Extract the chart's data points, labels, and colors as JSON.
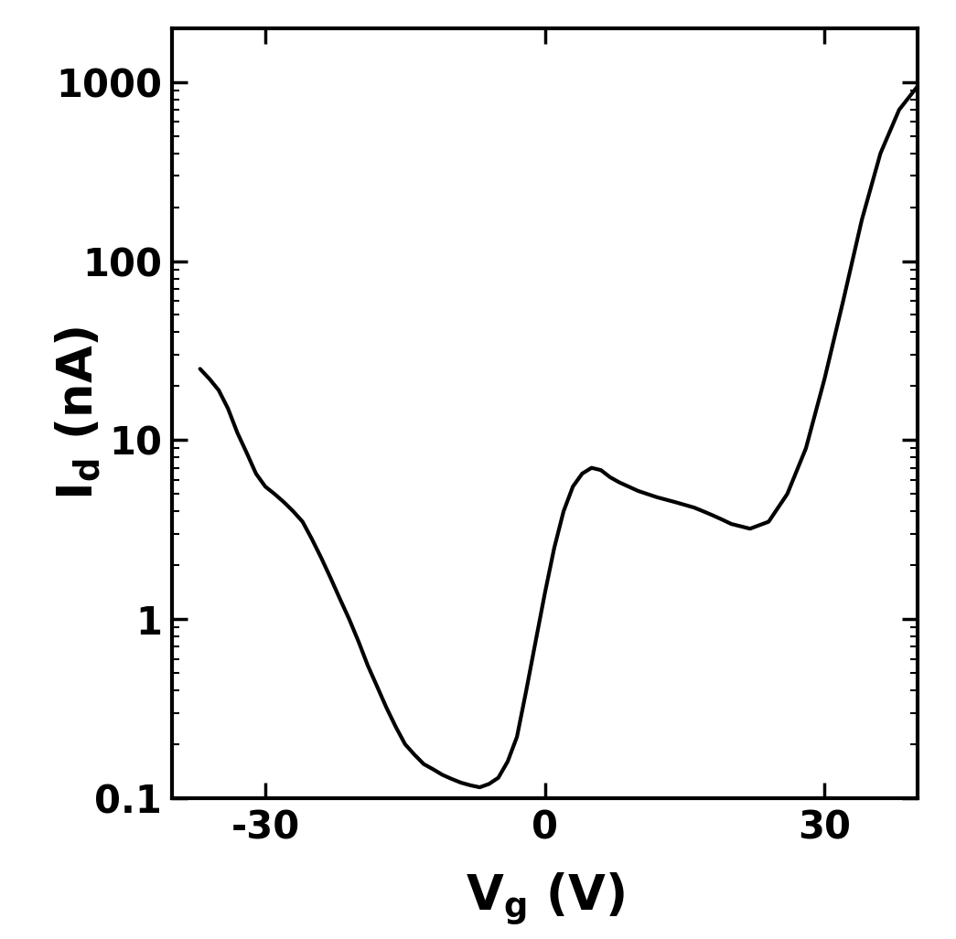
{
  "title": "",
  "xlabel_text": "$\\mathbf{V_g}$ $\\mathbf{(V)}$",
  "ylabel_text": "$\\mathbf{I_d}$ $\\mathbf{(nA)}$",
  "xlim": [
    -40,
    40
  ],
  "ylim": [
    0.1,
    2000
  ],
  "xticks": [
    -30,
    0,
    30
  ],
  "ytick_vals": [
    0.1,
    1,
    10,
    100,
    1000
  ],
  "ytick_labels": [
    "0.1",
    "1",
    "10",
    "100",
    "1000"
  ],
  "line_color": "#000000",
  "line_width": 3.0,
  "background_color": "#ffffff",
  "x": [
    -37,
    -36,
    -35,
    -34,
    -33,
    -32,
    -31,
    -30,
    -29,
    -28,
    -27,
    -26,
    -25,
    -24,
    -23,
    -22,
    -21,
    -20,
    -19,
    -18,
    -17,
    -16,
    -15,
    -14,
    -13,
    -12,
    -11,
    -10,
    -9,
    -8,
    -7,
    -6,
    -5,
    -4,
    -3,
    -2,
    -1,
    0,
    1,
    2,
    3,
    4,
    5,
    6,
    7,
    8,
    10,
    12,
    14,
    16,
    17,
    18,
    19,
    20,
    21,
    22,
    24,
    26,
    28,
    30,
    32,
    34,
    36,
    38,
    40
  ],
  "y": [
    25,
    22,
    19,
    15,
    11,
    8.5,
    6.5,
    5.5,
    5.0,
    4.5,
    4.0,
    3.5,
    2.8,
    2.2,
    1.7,
    1.3,
    1.0,
    0.75,
    0.55,
    0.42,
    0.32,
    0.25,
    0.2,
    0.175,
    0.155,
    0.145,
    0.135,
    0.128,
    0.122,
    0.118,
    0.115,
    0.12,
    0.13,
    0.16,
    0.22,
    0.4,
    0.75,
    1.4,
    2.5,
    4.0,
    5.5,
    6.5,
    7.0,
    6.8,
    6.2,
    5.8,
    5.2,
    4.8,
    4.5,
    4.2,
    4.0,
    3.8,
    3.6,
    3.4,
    3.3,
    3.2,
    3.5,
    5.0,
    9.0,
    22,
    60,
    170,
    400,
    700,
    950
  ]
}
